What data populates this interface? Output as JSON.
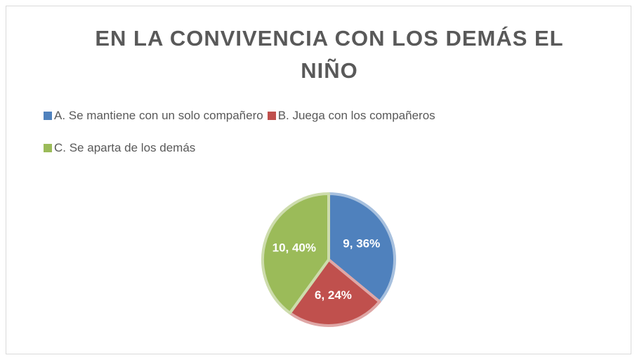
{
  "chart_data": {
    "type": "pie",
    "title": "EN LA CONVIVENCIA CON LOS DEMÁS EL NIÑO",
    "categories": [
      "A. Se mantiene con un solo compañero",
      "B. Juega con los compañeros",
      "C. Se aparta de los demás"
    ],
    "values": [
      9,
      6,
      10
    ],
    "value_labels": [
      "9, 36%",
      "6, 24%",
      "10, 40%"
    ],
    "colors": [
      "#4f81bd",
      "#c0504d",
      "#9bbb59"
    ],
    "legend": "top"
  }
}
